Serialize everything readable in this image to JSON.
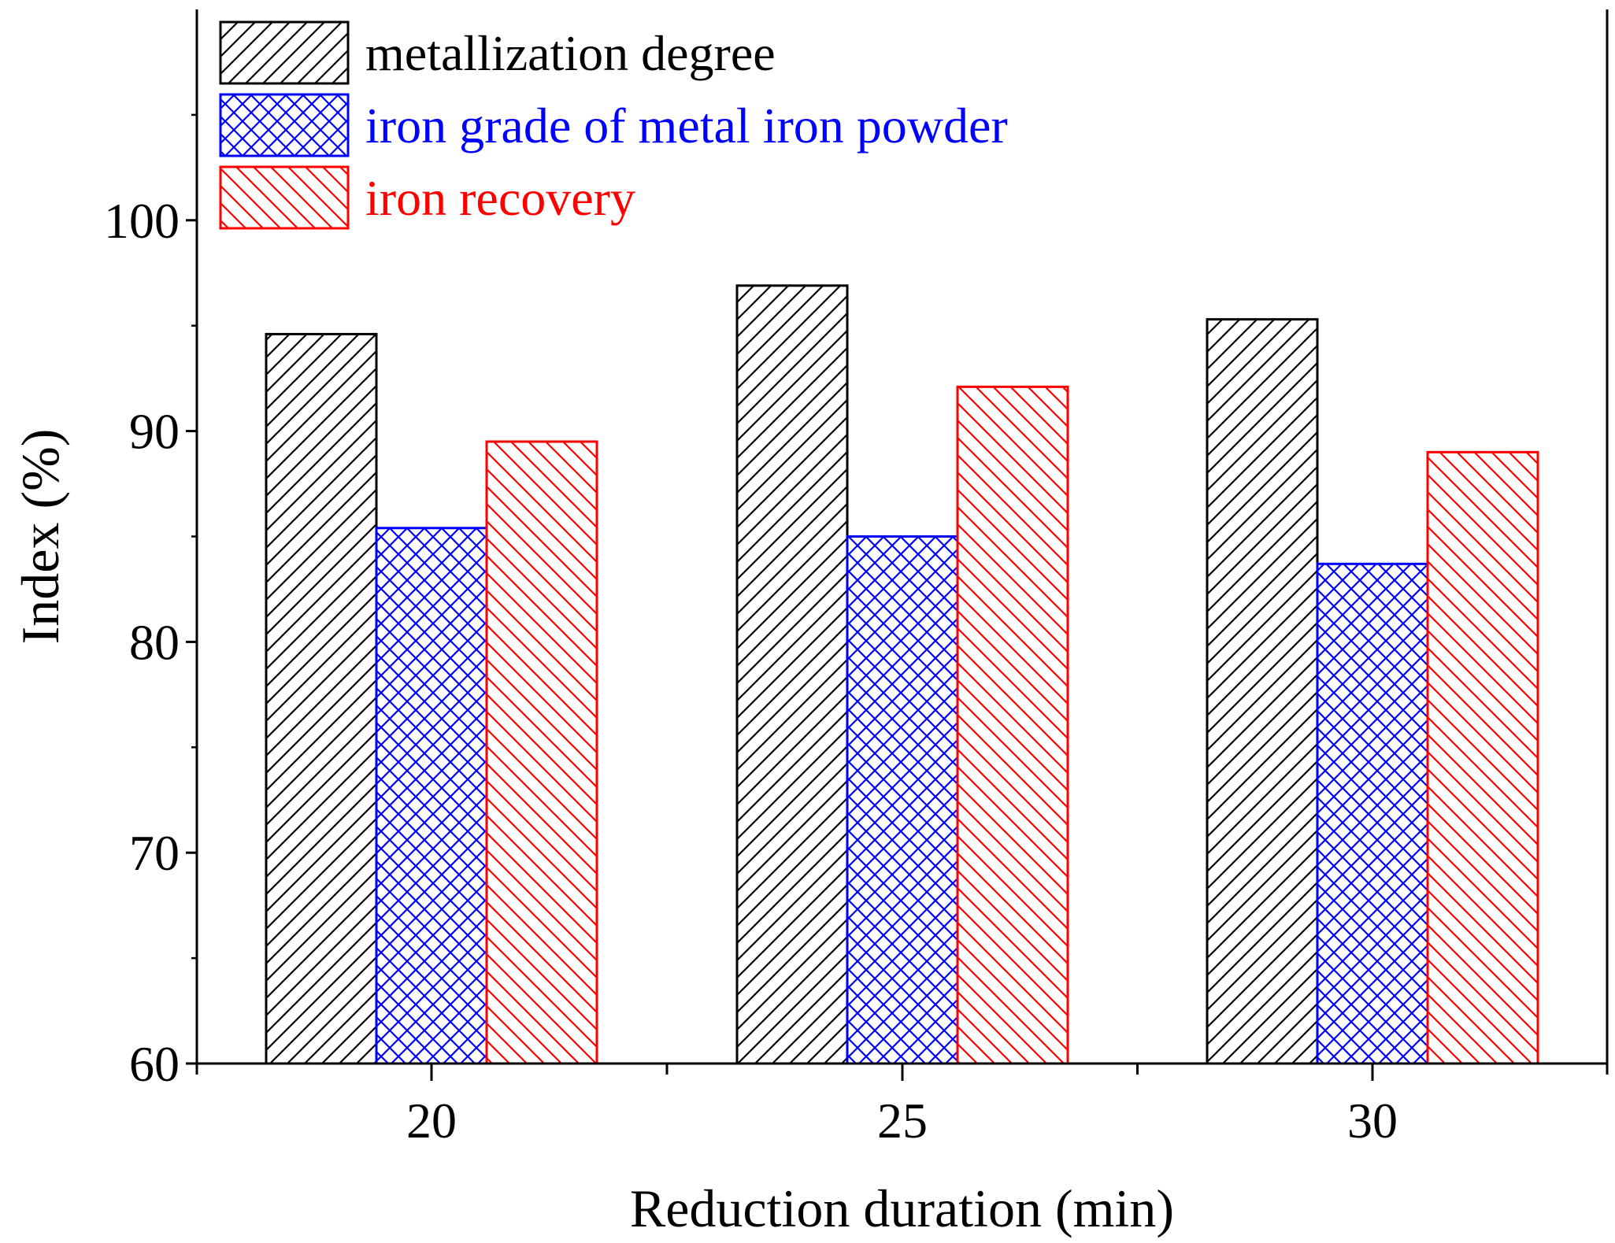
{
  "chart_data": {
    "type": "bar",
    "title": "",
    "xlabel": "Reduction duration (min)",
    "ylabel": "Index (%)",
    "categories": [
      "20",
      "25",
      "30"
    ],
    "ylim": [
      60,
      110
    ],
    "yticks": [
      "60",
      "70",
      "80",
      "90",
      "100"
    ],
    "legend_position": "top-left",
    "series": [
      {
        "name": "metallization degree",
        "values": [
          94.6,
          96.9,
          95.3
        ],
        "color": "#000000",
        "pattern": "diagonal-up"
      },
      {
        "name": "iron grade of metal iron powder",
        "values": [
          85.4,
          85.0,
          83.7
        ],
        "color": "#0000ff",
        "pattern": "crosshatch"
      },
      {
        "name": "iron recovery",
        "values": [
          89.5,
          92.1,
          89.0
        ],
        "color": "#ff0000",
        "pattern": "diagonal-down"
      }
    ]
  }
}
